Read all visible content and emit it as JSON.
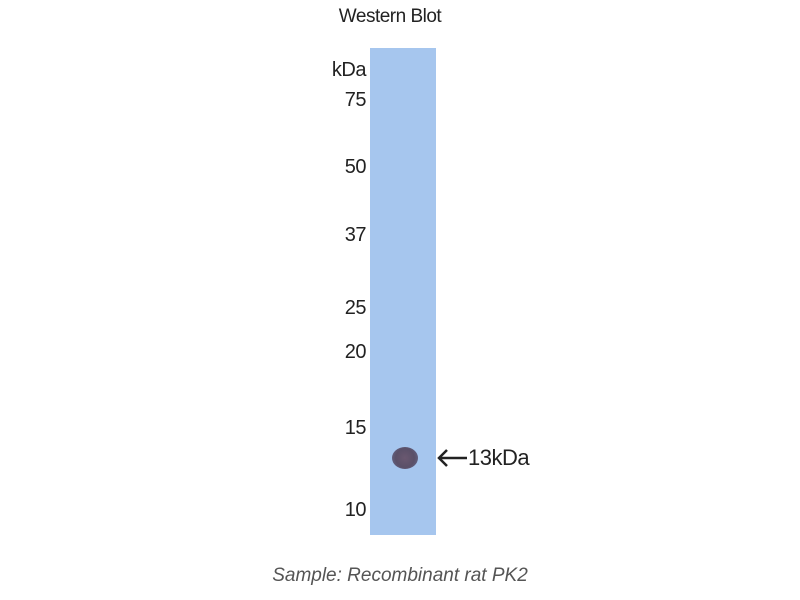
{
  "title": "Western Blot",
  "unit_label": "kDa",
  "markers": [
    "75",
    "50",
    "37",
    "25",
    "20",
    "15",
    "10"
  ],
  "band": {
    "label": "13kDa",
    "icon": "arrow-left-icon"
  },
  "caption": "Sample: Recombinant rat PK2",
  "colors": {
    "lane": "#a6c6ee",
    "band": "#5a5068"
  }
}
